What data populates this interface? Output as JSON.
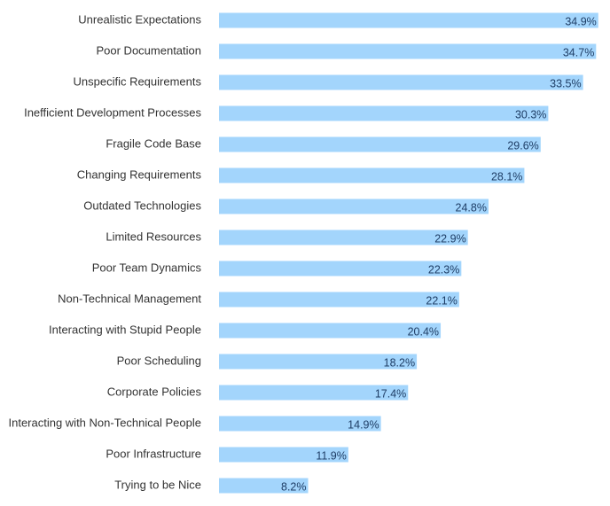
{
  "colors": {
    "bar": "#a3d5fc",
    "value_text": "#1f3e66",
    "category_text": "#333333",
    "background": "#ffffff"
  },
  "chart_data": {
    "type": "bar",
    "orientation": "horizontal",
    "title": "",
    "xlabel": "",
    "ylabel": "",
    "unit": "%",
    "categories": [
      "Unrealistic Expectations",
      "Poor Documentation",
      "Unspecific Requirements",
      "Inefficient Development Processes",
      "Fragile Code Base",
      "Changing Requirements",
      "Outdated Technologies",
      "Limited Resources",
      "Poor Team Dynamics",
      "Non-Technical Management",
      "Interacting with Stupid People",
      "Poor Scheduling",
      "Corporate Policies",
      "Interacting with Non-Technical People",
      "Poor Infrastructure",
      "Trying to be Nice"
    ],
    "values": [
      34.9,
      34.7,
      33.5,
      30.3,
      29.6,
      28.1,
      24.8,
      22.9,
      22.3,
      22.1,
      20.4,
      18.2,
      17.4,
      14.9,
      11.9,
      8.2
    ],
    "value_labels": [
      "34.9%",
      "34.7%",
      "33.5%",
      "30.3%",
      "29.6%",
      "28.1%",
      "24.8%",
      "22.9%",
      "22.3%",
      "22.1%",
      "20.4%",
      "18.2%",
      "17.4%",
      "14.9%",
      "11.9%",
      "8.2%"
    ],
    "xlim": [
      0,
      35
    ],
    "grid": false,
    "legend": "none"
  }
}
